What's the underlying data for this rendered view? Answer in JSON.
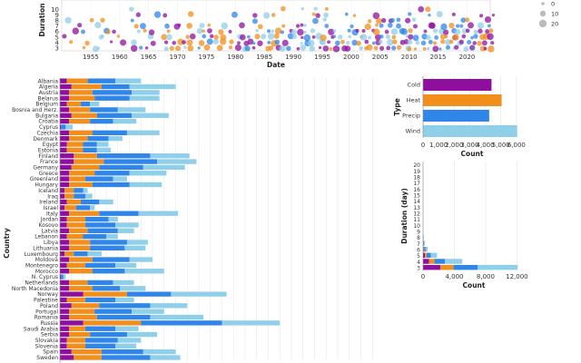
{
  "colors": {
    "Cold": "#8e0f9e",
    "Heat": "#f28e1c",
    "Precip": "#2f86e8",
    "Wind": "#90cfea"
  },
  "chart_data": [
    {
      "id": "timeline",
      "type": "scatter",
      "xlabel": "Date",
      "ylabel": "Duration",
      "x_ticks": [
        "1955",
        "1960",
        "1965",
        "1970",
        "1975",
        "1980",
        "1985",
        "1990",
        "1995",
        "2000",
        "2005",
        "2010",
        "2015",
        "2020"
      ],
      "x_range": [
        1950,
        2024
      ],
      "y_ticks": [
        "3",
        "4",
        "5",
        "6",
        "7",
        "8",
        "9",
        "10"
      ],
      "size_legend": [
        "0",
        "10",
        "20"
      ]
    },
    {
      "id": "type-bar",
      "type": "bar",
      "ylabel": "Type",
      "xlabel": "Count",
      "categories": [
        "Cold",
        "Heat",
        "Precip",
        "Wind"
      ],
      "values": [
        4400,
        5050,
        4250,
        6050
      ],
      "x_ticks": [
        "0",
        "1,000",
        "2,000",
        "3,000",
        "4,000",
        "5,000",
        "6,000"
      ],
      "xlim": [
        0,
        6300
      ]
    },
    {
      "id": "duration-bar",
      "type": "bar",
      "ylabel": "Duration (day)",
      "xlabel": "Count",
      "y_ticks": [
        "3",
        "4",
        "5",
        "6",
        "7",
        "8",
        "9",
        "10",
        "11",
        "12",
        "13",
        "14",
        "15",
        "16",
        "17",
        "18",
        "19",
        "20"
      ],
      "x_ticks": [
        "0",
        "4,000",
        "8,000",
        "12,000"
      ],
      "xlim": [
        0,
        13000
      ],
      "series": [
        {
          "name": "Cold",
          "values": [
            2200,
            780,
            250,
            85,
            40,
            20,
            12,
            8,
            5,
            3,
            2,
            2,
            1,
            1,
            1,
            1,
            1,
            1
          ]
        },
        {
          "name": "Heat",
          "values": [
            1700,
            680,
            230,
            80,
            35,
            18,
            10,
            6,
            4,
            3,
            2,
            1,
            1,
            1,
            1,
            1,
            1,
            1
          ]
        },
        {
          "name": "Precip",
          "values": [
            3100,
            1350,
            500,
            170,
            70,
            35,
            18,
            10,
            6,
            4,
            3,
            2,
            2,
            1,
            1,
            1,
            1,
            1
          ]
        },
        {
          "name": "Wind",
          "values": [
            5100,
            2200,
            800,
            240,
            100,
            45,
            22,
            12,
            7,
            5,
            3,
            2,
            2,
            1,
            1,
            1,
            1,
            1
          ]
        }
      ]
    },
    {
      "id": "country-bar",
      "type": "bar",
      "ylabel": "Country",
      "categories": [
        "Albania",
        "Algeria",
        "Austria",
        "Belarus",
        "Belgium",
        "Bosnia and Herz.",
        "Bulgaria",
        "Croatia",
        "Cyprus",
        "Czechia",
        "Denmark",
        "Egypt",
        "Estonia",
        "Finland",
        "France",
        "Germany",
        "Greece",
        "Greenland",
        "Hungary",
        "Iceland",
        "Iraq",
        "Ireland",
        "Israel",
        "Italy",
        "Jordan",
        "Kosovo",
        "Latvia",
        "Lebanon",
        "Libya",
        "Lithuania",
        "Luxembourg",
        "Moldova",
        "Montenegro",
        "Morocco",
        "N. Cyprus",
        "Netherlands",
        "North Macedonia",
        "Norway",
        "Palestine",
        "Poland",
        "Portugal",
        "Romania",
        "Russia",
        "Saudi Arabia",
        "Serbia",
        "Slovakia",
        "Slovenia",
        "Spain",
        "Sweden"
      ],
      "series": [
        {
          "name": "Cold",
          "values": [
            3,
            5,
            4,
            4,
            3,
            4,
            5,
            4,
            0.5,
            4,
            4,
            3,
            3,
            6,
            6,
            5,
            4,
            4,
            4,
            2,
            2,
            3,
            2,
            4,
            3,
            3,
            4,
            3,
            4,
            4,
            2,
            4,
            3,
            4,
            0.5,
            4,
            4,
            10,
            3,
            5,
            4,
            4,
            10,
            4,
            4,
            3,
            3,
            5,
            6
          ]
        },
        {
          "name": "Heat",
          "values": [
            9,
            13,
            10,
            11,
            6,
            9,
            11,
            9,
            0,
            10,
            8,
            7,
            7,
            10,
            13,
            12,
            11,
            7,
            10,
            4,
            4,
            6,
            5,
            13,
            8,
            8,
            8,
            7,
            9,
            9,
            4,
            10,
            8,
            10,
            0,
            8,
            10,
            19,
            8,
            12,
            11,
            12,
            25,
            7,
            9,
            8,
            8,
            13,
            12
          ]
        },
        {
          "name": "Precip",
          "values": [
            12,
            12,
            17,
            15,
            4,
            12,
            15,
            10,
            2,
            15,
            9,
            6,
            6,
            23,
            23,
            19,
            15,
            12,
            16,
            4,
            5,
            8,
            6,
            17,
            10,
            13,
            13,
            10,
            16,
            15,
            6,
            16,
            13,
            14,
            1,
            11,
            12,
            19,
            13,
            22,
            16,
            23,
            35,
            13,
            16,
            14,
            13,
            18,
            21
          ]
        },
        {
          "name": "Wind",
          "values": [
            11,
            20,
            12,
            13,
            4,
            12,
            16,
            10,
            3,
            14,
            6,
            5,
            6,
            17,
            17,
            18,
            16,
            6,
            14,
            2,
            3,
            6,
            2,
            17,
            4,
            10,
            7,
            5,
            9,
            9,
            6,
            10,
            9,
            17,
            1,
            9,
            11,
            24,
            8,
            16,
            14,
            23,
            25,
            10,
            13,
            10,
            9,
            14,
            13
          ]
        }
      ]
    }
  ]
}
